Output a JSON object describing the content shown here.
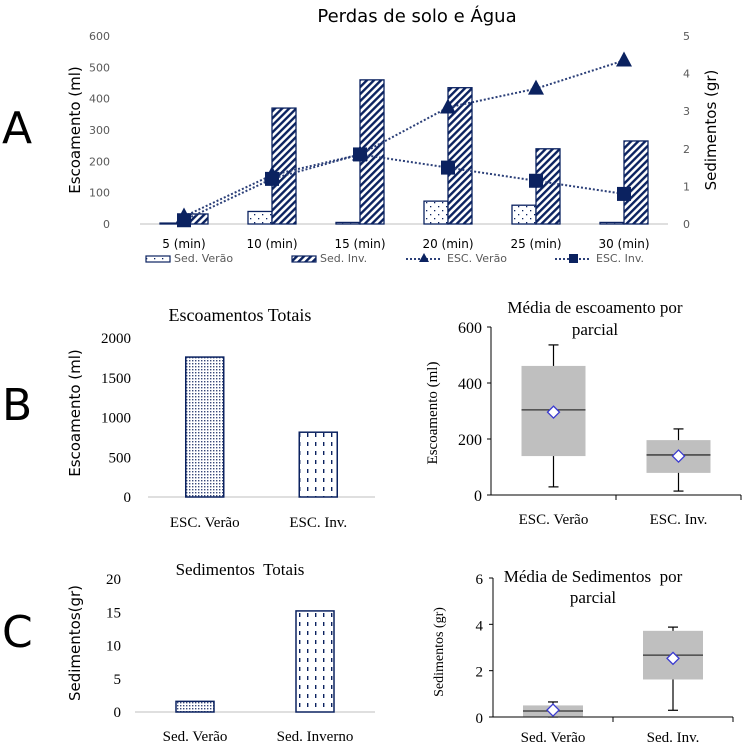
{
  "panels": {
    "A": {
      "letter": "A"
    },
    "B": {
      "letter": "B"
    },
    "C": {
      "letter": "C"
    }
  },
  "colors": {
    "navy": "#0b2260",
    "axis": "#bfbfbf",
    "tick_text": "#595959",
    "box_fill": "#bfbfbf",
    "mean_marker": "#3b3bd0"
  },
  "chart_data": [
    {
      "id": "A",
      "type": "bar",
      "title": "Perdas de solo e Água",
      "xlabel": "",
      "ylabel": "Escoamento (ml)",
      "y2label": "Sedimentos (gr)",
      "categories": [
        "5 (min)",
        "10 (min)",
        "15 (min)",
        "20 (min)",
        "25 (min)",
        "30 (min)"
      ],
      "ylim": [
        0,
        600
      ],
      "yticks": [
        0,
        100,
        200,
        300,
        400,
        500,
        600
      ],
      "y2lim": [
        0,
        5
      ],
      "y2ticks": [
        0,
        1,
        2,
        3,
        4,
        5
      ],
      "grid": false,
      "legend": "bottom",
      "series": [
        {
          "name": "Sed. Verão",
          "kind": "bar",
          "axis": "left",
          "pattern": "dots",
          "values": [
            3,
            40,
            5,
            73,
            60,
            5
          ]
        },
        {
          "name": "Sed. Inv.",
          "kind": "bar",
          "axis": "left",
          "pattern": "diagonal",
          "values": [
            32,
            370,
            460,
            435,
            240,
            265
          ]
        },
        {
          "name": "ESC. Verão",
          "kind": "line",
          "axis": "right",
          "marker": "triangle",
          "values": [
            0.2,
            1.3,
            1.85,
            3.1,
            3.6,
            4.35
          ]
        },
        {
          "name": "ESC. Inv.",
          "kind": "line",
          "axis": "right",
          "marker": "square",
          "values": [
            0.1,
            1.2,
            1.85,
            1.5,
            1.15,
            0.8
          ]
        }
      ]
    },
    {
      "id": "B-left",
      "type": "bar",
      "title": "Escoamentos Totais",
      "xlabel": "",
      "ylabel": "Escoamento (ml)",
      "categories": [
        "ESC. Verão",
        "ESC. Inv."
      ],
      "values": [
        1760,
        815
      ],
      "patterns": [
        "fine-dots",
        "dashes"
      ],
      "ylim": [
        0,
        2000
      ],
      "yticks": [
        0,
        500,
        1000,
        1500,
        2000
      ],
      "grid": false
    },
    {
      "id": "B-right",
      "type": "boxplot",
      "title": "Média de escoamento por parcial",
      "title_lines": [
        "Média de escoamento por",
        "parcial"
      ],
      "xlabel": "",
      "ylabel": "Escoamento (ml)",
      "categories": [
        "ESC. Verão",
        "ESC. Inv."
      ],
      "boxes": [
        {
          "min": 29,
          "q1": 139,
          "median": 304,
          "mean": 296,
          "q3": 461,
          "max": 536
        },
        {
          "min": 14,
          "q1": 79,
          "median": 143,
          "mean": 139,
          "q3": 196,
          "max": 236
        }
      ],
      "ylim": [
        0,
        600
      ],
      "yticks": [
        0,
        200,
        400,
        600
      ],
      "grid": false
    },
    {
      "id": "C-left",
      "type": "bar",
      "title": "Sedimentos  Totais",
      "xlabel": "",
      "ylabel": "Sedimentos(gr)",
      "categories": [
        "Sed. Verão",
        "Sed. Inverno"
      ],
      "values": [
        1.6,
        15.2
      ],
      "patterns": [
        "fine-dots",
        "dashes"
      ],
      "ylim": [
        0,
        20
      ],
      "yticks": [
        0,
        5,
        10,
        15,
        20
      ],
      "grid": false
    },
    {
      "id": "C-right",
      "type": "boxplot",
      "title": "Média de Sedimentos  por parcial",
      "title_lines": [
        "Média de Sedimentos  por",
        "parcial"
      ],
      "xlabel": "",
      "ylabel": "Sedimentos (gr)",
      "categories": [
        "Sed. Verão",
        "Sed. Inv."
      ],
      "boxes": [
        {
          "min": 0.0,
          "q1": 0.02,
          "median": 0.26,
          "mean": 0.3,
          "q3": 0.5,
          "max": 0.65
        },
        {
          "min": 0.29,
          "q1": 1.62,
          "median": 2.67,
          "mean": 2.53,
          "q3": 3.72,
          "max": 3.88
        }
      ],
      "ylim": [
        0,
        6
      ],
      "yticks": [
        0,
        2,
        4,
        6
      ],
      "grid": false
    }
  ]
}
